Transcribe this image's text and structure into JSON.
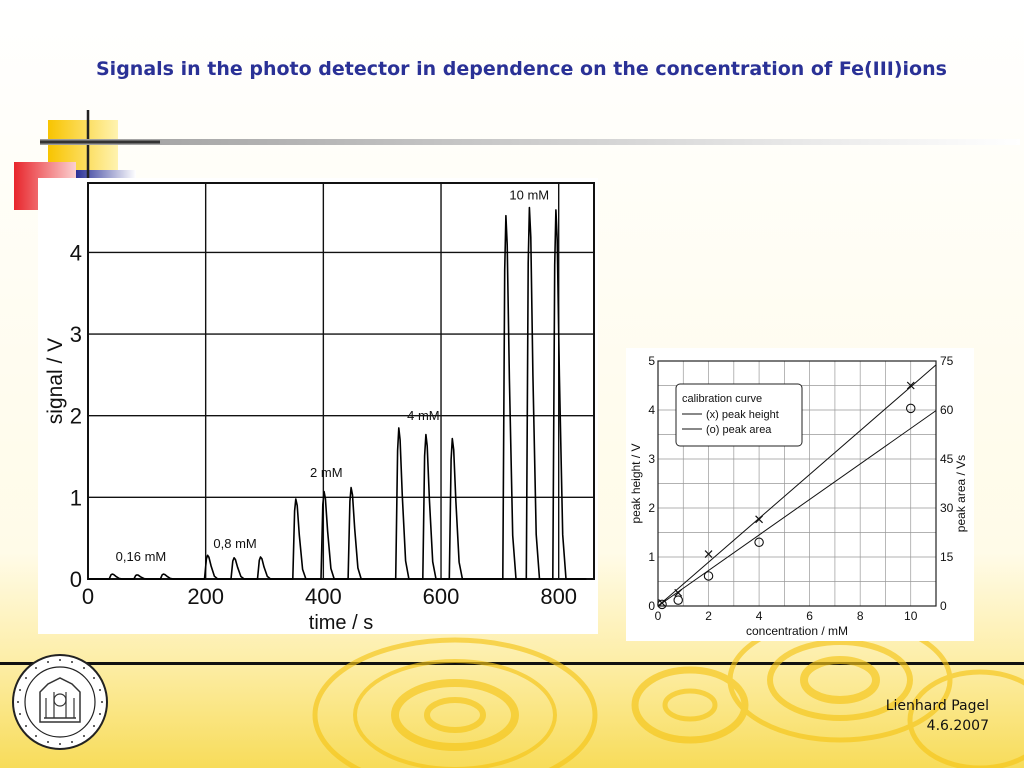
{
  "slide": {
    "title": "Signals in the photo detector in dependence on the concentration of Fe(III)ions",
    "author": "Lienhard Pagel",
    "date": "4.6.2007",
    "seal_text": "UNIVERSITAS ROSTOCHIENSIS",
    "accent_blue": "#2a3196",
    "accent_yellow": "#f5c518",
    "accent_red": "#e8262c"
  },
  "chart_data": [
    {
      "type": "line",
      "title": "",
      "xlabel": "time / s",
      "ylabel": "signal / V",
      "xlim": [
        0,
        860
      ],
      "ylim": [
        0,
        4.85
      ],
      "xticks": [
        0,
        200,
        400,
        600,
        800
      ],
      "yticks": [
        0,
        1,
        2,
        3,
        4
      ],
      "grid": true,
      "annotations": [
        {
          "text": "0,16 mM",
          "x": 90,
          "y": 0.22
        },
        {
          "text": "0,8 mM",
          "x": 250,
          "y": 0.38
        },
        {
          "text": "2 mM",
          "x": 405,
          "y": 1.25
        },
        {
          "text": "4 mM",
          "x": 570,
          "y": 1.95
        },
        {
          "text": "10 mM",
          "x": 750,
          "y": 4.65
        }
      ],
      "peaks": [
        {
          "t": 43,
          "h": 0.06
        },
        {
          "t": 85,
          "h": 0.05
        },
        {
          "t": 130,
          "h": 0.06
        },
        {
          "t": 205,
          "h": 0.29
        },
        {
          "t": 250,
          "h": 0.26
        },
        {
          "t": 295,
          "h": 0.27
        },
        {
          "t": 355,
          "h": 0.98
        },
        {
          "t": 403,
          "h": 1.07
        },
        {
          "t": 449,
          "h": 1.12
        },
        {
          "t": 530,
          "h": 1.85
        },
        {
          "t": 576,
          "h": 1.77
        },
        {
          "t": 621,
          "h": 1.72
        },
        {
          "t": 712,
          "h": 4.45
        },
        {
          "t": 752,
          "h": 4.55
        },
        {
          "t": 797,
          "h": 4.52
        }
      ]
    },
    {
      "type": "scatter",
      "title": "",
      "xlabel": "concentration / mM",
      "ylabel": "peak height / V",
      "y2label": "peak area / Vs",
      "xlim": [
        0,
        11
      ],
      "ylim": [
        0,
        5
      ],
      "y2lim": [
        0,
        75
      ],
      "xticks": [
        0,
        2,
        4,
        6,
        8,
        10
      ],
      "yticks": [
        0,
        1,
        2,
        3,
        4,
        5
      ],
      "y2ticks": [
        0,
        15,
        30,
        45,
        60,
        75
      ],
      "grid": true,
      "legend": {
        "title": "calibration curve",
        "position": "top-left",
        "entries": [
          "(x) peak height",
          "(o) peak area"
        ]
      },
      "series": [
        {
          "name": "(x) peak height",
          "marker": "x",
          "axis": "left",
          "x": [
            0.16,
            0.8,
            2,
            4,
            10
          ],
          "y": [
            0.06,
            0.27,
            1.06,
            1.77,
            4.5
          ],
          "fit": {
            "x": [
              0,
              11
            ],
            "y": [
              0,
              4.92
            ]
          }
        },
        {
          "name": "(o) peak area",
          "marker": "o",
          "axis": "right",
          "x": [
            0.16,
            0.8,
            2,
            4,
            10
          ],
          "y": [
            0.5,
            1.8,
            9.2,
            19.5,
            60.5
          ],
          "fit": {
            "x": [
              0,
              11
            ],
            "y": [
              0,
              59.8
            ]
          }
        }
      ]
    }
  ]
}
